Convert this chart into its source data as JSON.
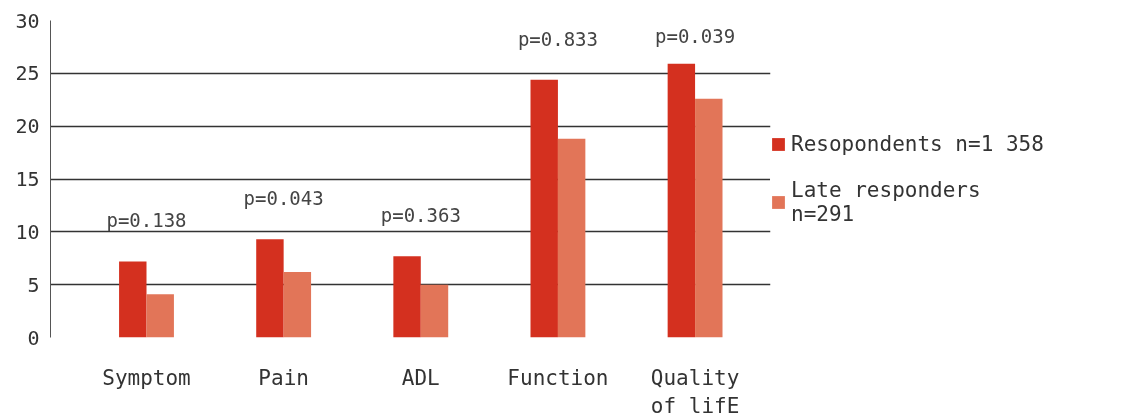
{
  "chart_data": {
    "type": "bar",
    "categories": [
      "Symptom",
      "Pain",
      "ADL",
      "Function",
      "Quality\nof lifE"
    ],
    "series": [
      {
        "name": "Resopondents n=1 358",
        "color": "#d4301f",
        "values": [
          7.2,
          9.3,
          7.7,
          24.4,
          25.9
        ]
      },
      {
        "name": "Late responders\nn=291",
        "color": "#e27558",
        "values": [
          4.1,
          6.2,
          5.0,
          18.8,
          22.6
        ]
      }
    ],
    "ylim": [
      0,
      30
    ],
    "yticks": [
      0,
      5,
      10,
      15,
      20,
      25,
      30
    ],
    "grid": "y",
    "legend": "right",
    "annotations": [
      "p=0.138",
      "p=0.043",
      "p=0.363",
      "p=0.833",
      "p=0.039"
    ]
  }
}
